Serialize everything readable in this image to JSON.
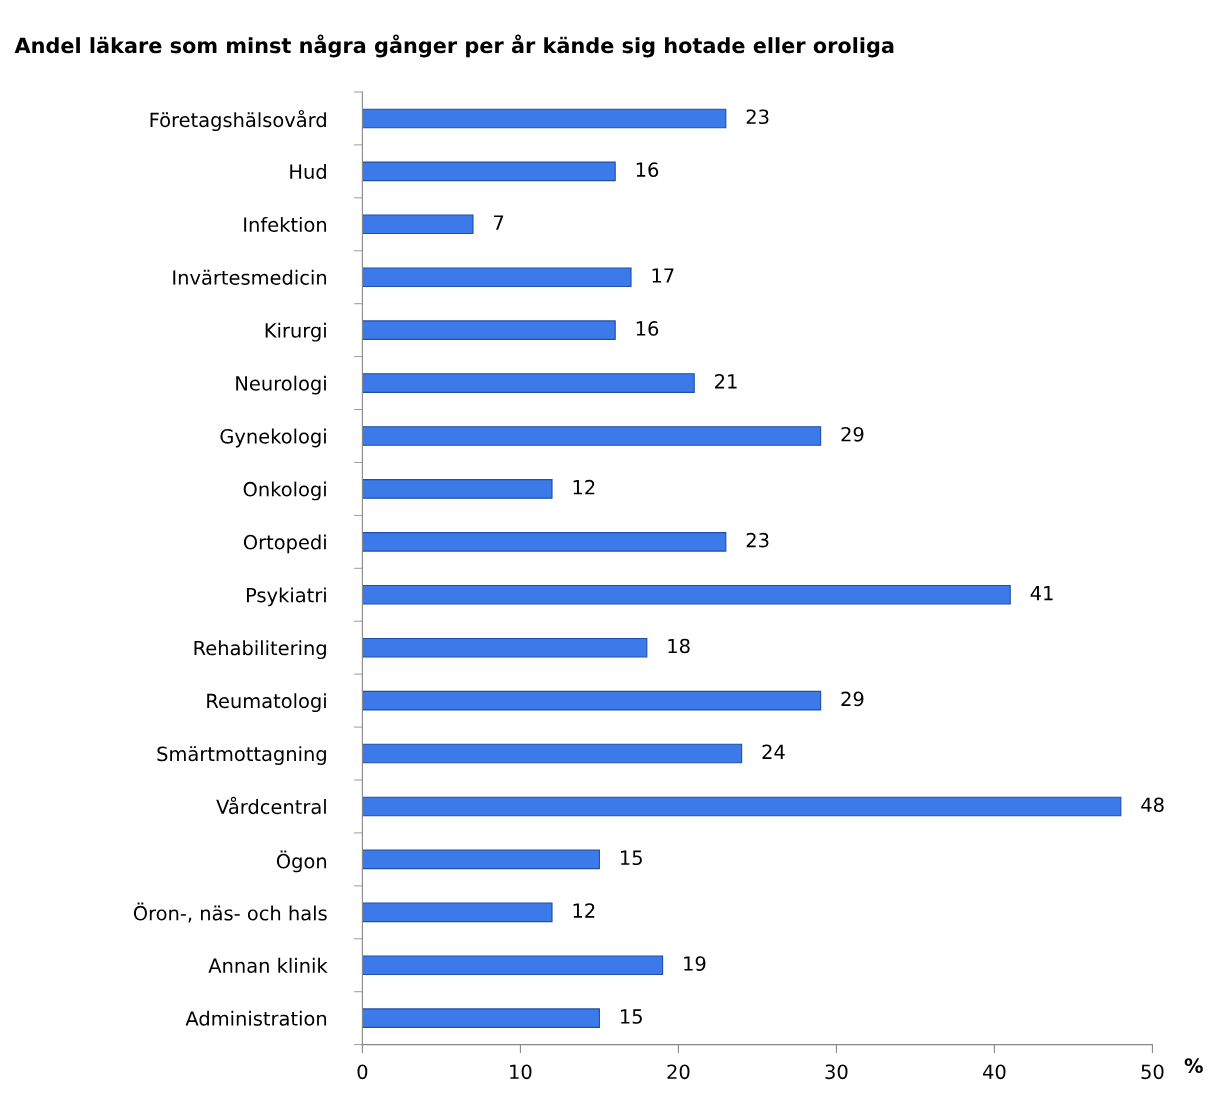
{
  "chart_data": {
    "type": "bar",
    "orientation": "horizontal",
    "title": "Andel läkare som minst några gånger per år kände sig hotade eller oroliga",
    "xlabel": "%",
    "categories": [
      "Företagshälsovård",
      "Hud",
      "Infektion",
      "Invärtesmedicin",
      "Kirurgi",
      "Neurologi",
      "Gynekologi",
      "Onkologi",
      "Ortopedi",
      "Psykiatri",
      "Rehabilitering",
      "Reumatologi",
      "Smärtmottagning",
      "Vårdcentral",
      "Ögon",
      "Öron-, näs- och hals",
      "Annan klinik",
      "Administration"
    ],
    "values": [
      23,
      16,
      7,
      17,
      16,
      21,
      29,
      12,
      23,
      41,
      18,
      29,
      24,
      48,
      15,
      12,
      19,
      15
    ],
    "color": "#3b7ae8",
    "data_labels": true,
    "xlim": [
      0,
      50
    ],
    "xticks": [
      0,
      10,
      20,
      30,
      40,
      50
    ],
    "grid": false,
    "legend": false
  }
}
